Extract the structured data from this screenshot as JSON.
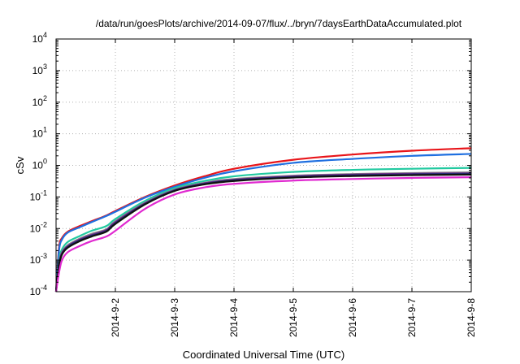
{
  "chart_data": {
    "type": "line",
    "title": "/data/run/goesPlots/archive/2014-09-07/flux/../bryn/7daysEarthDataAccumulated.plot",
    "xlabel": "Coordinated Universal Time (UTC)",
    "ylabel": "cSv",
    "yscale": "log",
    "ylim": [
      0.0001,
      10000
    ],
    "xlim": [
      1,
      8
    ],
    "x_unit": "days since 2014-09-01",
    "x_ticks": [
      {
        "value": 2,
        "label": "2014-9-2"
      },
      {
        "value": 3,
        "label": "2014-9-3"
      },
      {
        "value": 4,
        "label": "2014-9-4"
      },
      {
        "value": 5,
        "label": "2014-9-5"
      },
      {
        "value": 6,
        "label": "2014-9-6"
      },
      {
        "value": 7,
        "label": "2014-9-7"
      },
      {
        "value": 8,
        "label": "2014-9-8"
      }
    ],
    "y_ticks": [
      {
        "value": 0.0001,
        "base": "10",
        "exp": "-4"
      },
      {
        "value": 0.001,
        "base": "10",
        "exp": "-3"
      },
      {
        "value": 0.01,
        "base": "10",
        "exp": "-2"
      },
      {
        "value": 0.1,
        "base": "10",
        "exp": "-1"
      },
      {
        "value": 1,
        "base": "10",
        "exp": "0"
      },
      {
        "value": 10,
        "base": "10",
        "exp": "1"
      },
      {
        "value": 100,
        "base": "10",
        "exp": "2"
      },
      {
        "value": 1000,
        "base": "10",
        "exp": "3"
      },
      {
        "value": 10000,
        "base": "10",
        "exp": "4"
      }
    ],
    "grid": true,
    "legend": "none",
    "x": [
      1.0,
      1.05,
      1.1,
      1.2,
      1.4,
      1.6,
      1.85,
      2.0,
      2.5,
      3.0,
      3.5,
      4.0,
      5.0,
      6.0,
      7.0,
      8.0
    ],
    "series": [
      {
        "color": "#e8151a",
        "values": [
          0.0001,
          0.0025,
          0.005,
          0.008,
          0.012,
          0.017,
          0.026,
          0.036,
          0.1,
          0.23,
          0.45,
          0.78,
          1.5,
          2.2,
          2.9,
          3.5
        ]
      },
      {
        "color": "#1f6fe0",
        "values": [
          0.0001,
          0.002,
          0.0045,
          0.0075,
          0.011,
          0.016,
          0.025,
          0.034,
          0.095,
          0.21,
          0.4,
          0.65,
          1.2,
          1.6,
          2.0,
          2.3
        ]
      },
      {
        "color": "#22c9a0",
        "values": [
          0.0001,
          0.001,
          0.0022,
          0.0038,
          0.0058,
          0.0085,
          0.012,
          0.02,
          0.075,
          0.19,
          0.32,
          0.45,
          0.62,
          0.72,
          0.78,
          0.83
        ]
      },
      {
        "color": "#8a8a8a",
        "values": [
          0.0001,
          0.0008,
          0.0018,
          0.003,
          0.0048,
          0.0068,
          0.0095,
          0.017,
          0.066,
          0.17,
          0.28,
          0.37,
          0.47,
          0.53,
          0.57,
          0.6
        ]
      },
      {
        "color": "#7a2a8a",
        "values": [
          0.0001,
          0.00075,
          0.0017,
          0.0028,
          0.0045,
          0.0063,
          0.009,
          0.016,
          0.063,
          0.165,
          0.27,
          0.35,
          0.45,
          0.51,
          0.54,
          0.56
        ]
      },
      {
        "color": "#2a2a7a",
        "values": [
          0.0001,
          0.0007,
          0.0016,
          0.0027,
          0.0043,
          0.006,
          0.0085,
          0.015,
          0.061,
          0.16,
          0.26,
          0.34,
          0.43,
          0.49,
          0.52,
          0.54
        ]
      },
      {
        "color": "#101010",
        "values": [
          0.0001,
          0.00065,
          0.0015,
          0.0025,
          0.004,
          0.0056,
          0.008,
          0.014,
          0.058,
          0.155,
          0.25,
          0.32,
          0.41,
          0.46,
          0.49,
          0.51
        ]
      },
      {
        "color": "#e02ad0",
        "values": [
          0.0001,
          0.0004,
          0.001,
          0.0018,
          0.0028,
          0.004,
          0.0056,
          0.0085,
          0.042,
          0.12,
          0.2,
          0.26,
          0.33,
          0.37,
          0.4,
          0.42
        ]
      }
    ]
  }
}
